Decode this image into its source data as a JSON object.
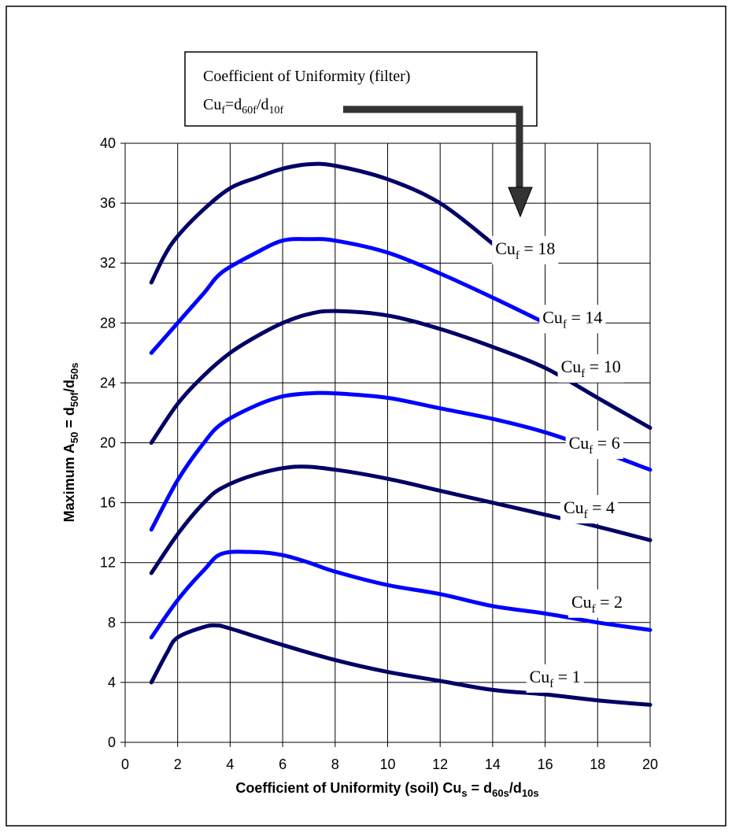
{
  "legend_box": {
    "line1": "Coefficient of Uniformity (filter)",
    "line2_base": "Cu",
    "line2_sub_f": "f",
    "line2_eq": "=d",
    "line2_sub_60f": "60f",
    "line2_slash": "/d",
    "line2_sub_10f": "10f"
  },
  "chart_data": {
    "type": "line",
    "xlabel": {
      "prefix": "Coefficient of Uniformity (soil) Cu",
      "sub1": "s",
      "mid": " = d",
      "sub2": "60s",
      "slash": "/d",
      "sub3": "10s"
    },
    "ylabel": {
      "prefix": "Maximum A",
      "sub1": "50",
      "mid": " = d",
      "sub2": "50f",
      "slash": "/d",
      "sub3": "50s"
    },
    "xlim": [
      0,
      20
    ],
    "ylim": [
      0,
      40
    ],
    "xticks": [
      "0",
      "2",
      "4",
      "6",
      "8",
      "10",
      "12",
      "14",
      "16",
      "18",
      "20"
    ],
    "yticks": [
      "0",
      "4",
      "8",
      "12",
      "16",
      "20",
      "24",
      "28",
      "32",
      "36",
      "40"
    ],
    "grid": true,
    "series": [
      {
        "name": "Cu_f = 1",
        "label_base": "Cu",
        "label_sub": "f",
        "label_val": " = 1",
        "color": "#000066",
        "label_at": [
          15.4,
          4.0
        ],
        "x": [
          1,
          1.6,
          2,
          3,
          3.5,
          4,
          6,
          8,
          10,
          12,
          14,
          16,
          18,
          20
        ],
        "y": [
          4,
          6.0,
          7.0,
          7.7,
          7.8,
          7.6,
          6.5,
          5.5,
          4.7,
          4.1,
          3.5,
          3.2,
          2.8,
          2.5
        ]
      },
      {
        "name": "Cu_f = 2",
        "label_base": "Cu",
        "label_sub": "f",
        "label_val": " = 2",
        "color": "#0000ff",
        "label_at": [
          17.0,
          9.0
        ],
        "x": [
          1,
          2,
          3,
          3.7,
          5,
          6,
          7,
          8,
          10,
          12,
          14,
          16,
          18,
          20
        ],
        "y": [
          7,
          9.5,
          11.5,
          12.6,
          12.7,
          12.5,
          12.0,
          11.4,
          10.5,
          9.9,
          9.1,
          8.6,
          8.0,
          7.5
        ]
      },
      {
        "name": "Cu_f = 4",
        "label_base": "Cu",
        "label_sub": "f",
        "label_val": " = 4",
        "color": "#000066",
        "label_at": [
          16.7,
          15.3
        ],
        "x": [
          1,
          2,
          3,
          3.7,
          5,
          6.5,
          8,
          10,
          12,
          14,
          16,
          18,
          20
        ],
        "y": [
          11.3,
          13.9,
          16.0,
          17.0,
          17.9,
          18.4,
          18.2,
          17.6,
          16.8,
          16.0,
          15.2,
          14.4,
          13.5
        ]
      },
      {
        "name": "Cu_f = 6",
        "label_base": "Cu",
        "label_sub": "f",
        "label_val": " = 6",
        "color": "#0000ff",
        "label_at": [
          16.9,
          19.6
        ],
        "x": [
          1,
          2,
          3,
          3.7,
          5,
          6,
          7,
          8,
          10,
          12,
          14,
          16,
          18,
          20
        ],
        "y": [
          14.2,
          17.5,
          20.0,
          21.3,
          22.5,
          23.1,
          23.3,
          23.3,
          23.0,
          22.3,
          21.6,
          20.7,
          19.5,
          18.2
        ]
      },
      {
        "name": "Cu_f = 10",
        "label_base": "Cu",
        "label_sub": "f",
        "label_val": " = 10",
        "color": "#000066",
        "label_at": [
          16.6,
          24.7
        ],
        "x": [
          1,
          2,
          3,
          4,
          5,
          6,
          7,
          8,
          10,
          12,
          14,
          16,
          18,
          20
        ],
        "y": [
          20,
          22.6,
          24.5,
          26.0,
          27.1,
          28.0,
          28.6,
          28.8,
          28.5,
          27.6,
          26.4,
          25.0,
          23.0,
          21.0
        ]
      },
      {
        "name": "Cu_f = 14",
        "label_base": "Cu",
        "label_sub": "f",
        "label_val": " = 14",
        "color": "#0000ff",
        "label_at": [
          15.9,
          28.0
        ],
        "x": [
          1,
          2,
          3,
          3.7,
          5,
          6,
          7,
          8,
          10,
          12,
          14,
          16
        ],
        "y": [
          26,
          28.0,
          30.0,
          31.4,
          32.7,
          33.5,
          33.6,
          33.5,
          32.7,
          31.3,
          29.7,
          28.0
        ]
      },
      {
        "name": "Cu_f = 18",
        "label_base": "Cu",
        "label_sub": "f",
        "label_val": " = 18",
        "color": "#000066",
        "label_at": [
          14.1,
          32.6
        ],
        "x": [
          1,
          1.5,
          2,
          3,
          4,
          5,
          6,
          7,
          8,
          10,
          12,
          14
        ],
        "y": [
          30.7,
          32.5,
          33.8,
          35.6,
          37.0,
          37.7,
          38.3,
          38.6,
          38.5,
          37.6,
          36.0,
          33.3
        ]
      }
    ]
  }
}
